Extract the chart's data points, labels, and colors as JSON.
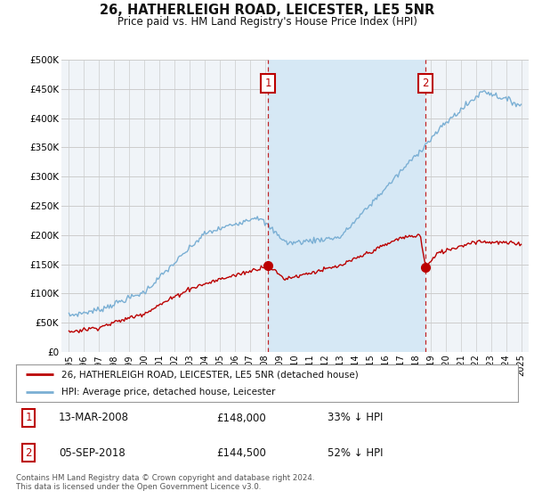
{
  "title": "26, HATHERLEIGH ROAD, LEICESTER, LE5 5NR",
  "subtitle": "Price paid vs. HM Land Registry's House Price Index (HPI)",
  "ylim": [
    0,
    500000
  ],
  "yticks": [
    0,
    50000,
    100000,
    150000,
    200000,
    250000,
    300000,
    350000,
    400000,
    450000,
    500000
  ],
  "ytick_labels": [
    "£0",
    "£50K",
    "£100K",
    "£150K",
    "£200K",
    "£250K",
    "£300K",
    "£350K",
    "£400K",
    "£450K",
    "£500K"
  ],
  "xlim_start": 1994.5,
  "xlim_end": 2025.5,
  "sale1_year": 2008.2,
  "sale1_price": 148000,
  "sale1_label": "1",
  "sale1_date": "13-MAR-2008",
  "sale1_amount": "£148,000",
  "sale1_hpi": "33% ↓ HPI",
  "sale2_year": 2018.67,
  "sale2_price": 144500,
  "sale2_label": "2",
  "sale2_date": "05-SEP-2018",
  "sale2_amount": "£144,500",
  "sale2_hpi": "52% ↓ HPI",
  "red_color": "#bb0000",
  "blue_color": "#7aafd4",
  "shade_color": "#d6e8f5",
  "background_color": "#ffffff",
  "plot_bg_color": "#f0f4f8",
  "grid_color": "#cccccc",
  "legend_label_red": "26, HATHERLEIGH ROAD, LEICESTER, LE5 5NR (detached house)",
  "legend_label_blue": "HPI: Average price, detached house, Leicester",
  "footer": "Contains HM Land Registry data © Crown copyright and database right 2024.\nThis data is licensed under the Open Government Licence v3.0."
}
